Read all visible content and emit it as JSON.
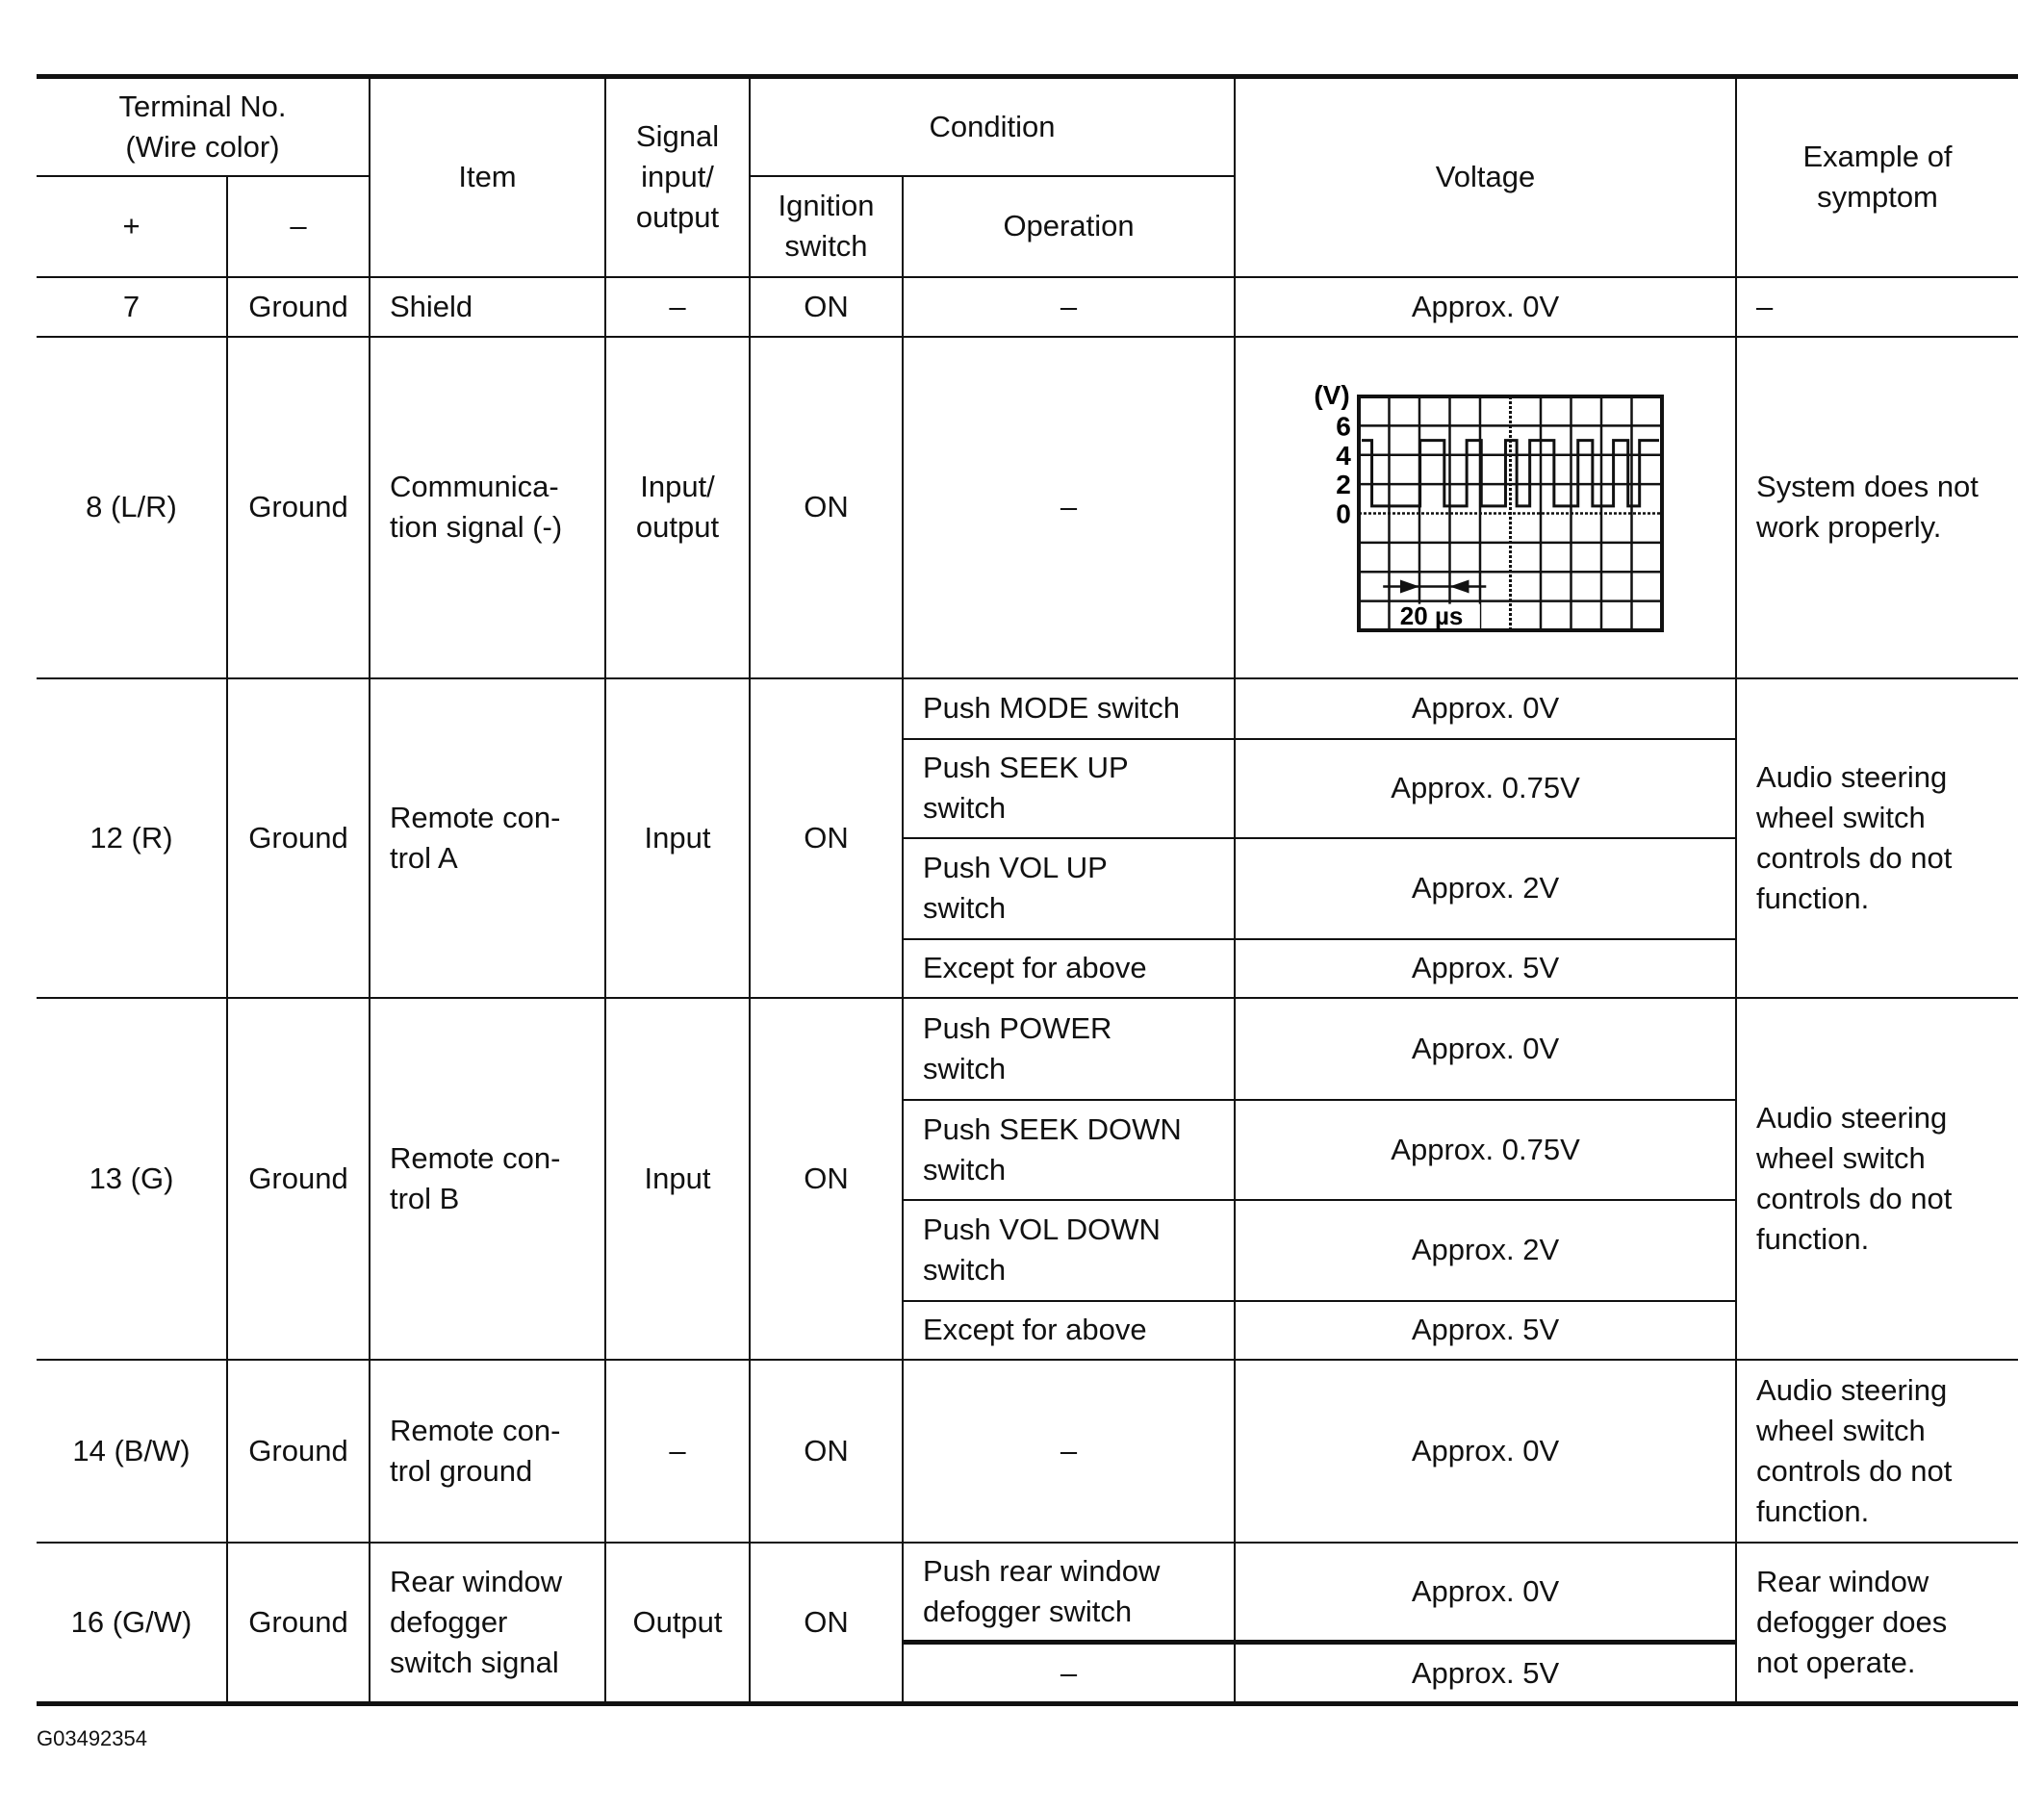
{
  "header": {
    "terminal": "Terminal No.\n(Wire color)",
    "plus": "+",
    "minus": "–",
    "item": "Item",
    "signal": "Signal\ninput/\noutput",
    "condition": "Condition",
    "ignition": "Ignition\nswitch",
    "operation": "Operation",
    "voltage": "Voltage",
    "symptom": "Example of\nsymptom"
  },
  "rows": [
    {
      "plus": "7",
      "minus": "Ground",
      "item": "Shield",
      "signal": "–",
      "ignition": "ON",
      "ops": [
        {
          "op": "–",
          "voltage": "Approx. 0V"
        }
      ],
      "symptom": "–"
    },
    {
      "plus": "8 (L/R)",
      "minus": "Ground",
      "item": "Communica-\ntion signal (-)",
      "signal": "Input/\noutput",
      "ignition": "ON",
      "ops": [
        {
          "op": "–",
          "voltage": ""
        }
      ],
      "symptom": "System does not\nwork properly."
    },
    {
      "plus": "12 (R)",
      "minus": "Ground",
      "item": "Remote con-\ntrol A",
      "signal": "Input",
      "ignition": "ON",
      "ops": [
        {
          "op": "Push MODE switch",
          "voltage": "Approx. 0V"
        },
        {
          "op": "Push SEEK UP\nswitch",
          "voltage": "Approx. 0.75V"
        },
        {
          "op": "Push VOL UP\nswitch",
          "voltage": "Approx. 2V"
        },
        {
          "op": "Except for above",
          "voltage": "Approx. 5V"
        }
      ],
      "symptom": "Audio steering\nwheel switch\ncontrols do not\nfunction."
    },
    {
      "plus": "13 (G)",
      "minus": "Ground",
      "item": "Remote con-\ntrol B",
      "signal": "Input",
      "ignition": "ON",
      "ops": [
        {
          "op": "Push POWER\nswitch",
          "voltage": "Approx. 0V"
        },
        {
          "op": "Push SEEK DOWN\nswitch",
          "voltage": "Approx. 0.75V"
        },
        {
          "op": "Push VOL DOWN\nswitch",
          "voltage": "Approx. 2V"
        },
        {
          "op": "Except for above",
          "voltage": "Approx. 5V"
        }
      ],
      "symptom": "Audio steering\nwheel switch\ncontrols do not\nfunction."
    },
    {
      "plus": "14 (B/W)",
      "minus": "Ground",
      "item": "Remote con-\ntrol ground",
      "signal": "–",
      "ignition": "ON",
      "ops": [
        {
          "op": "–",
          "voltage": "Approx. 0V"
        }
      ],
      "symptom": "Audio steering\nwheel switch\ncontrols do not\nfunction."
    },
    {
      "plus": "16 (G/W)",
      "minus": "Ground",
      "item": "Rear window\ndefogger\nswitch signal",
      "signal": "Output",
      "ignition": "ON",
      "ops": [
        {
          "op": "Push rear window\ndefogger switch",
          "voltage": "Approx. 0V"
        },
        {
          "op": "–",
          "voltage": "Approx. 5V"
        }
      ],
      "symptom": "Rear window\ndefogger does\nnot operate."
    }
  ],
  "waveform": {
    "unit": "(V)",
    "y_ticks": [
      "6",
      "4",
      "2",
      "0"
    ],
    "time_scale": "20 µs",
    "high_level_v": 5,
    "low_level_v": 0.5
  },
  "footer_code": "G03492354"
}
